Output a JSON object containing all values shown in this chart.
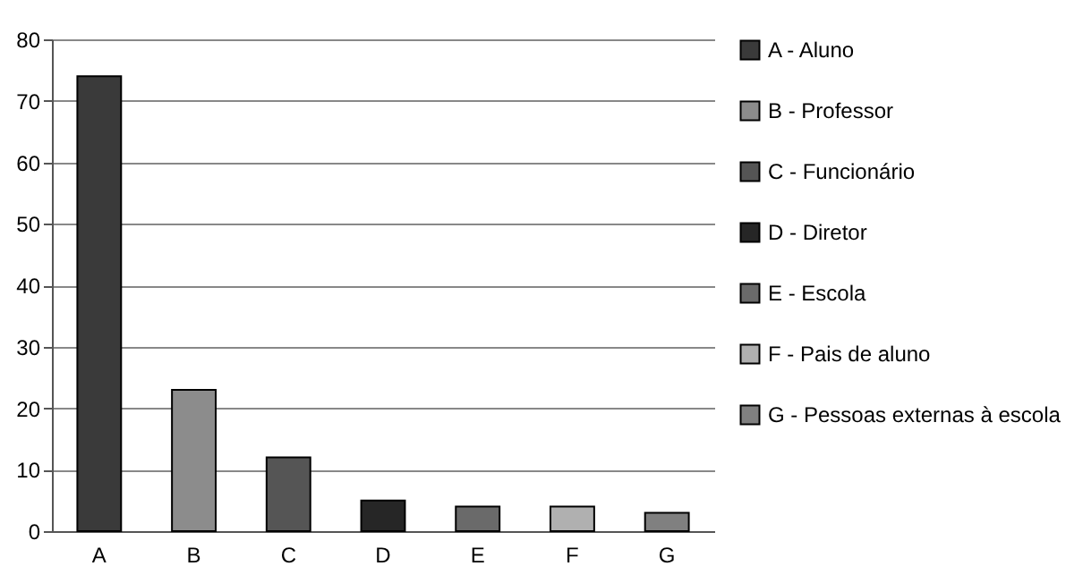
{
  "chart_data": {
    "type": "bar",
    "categories": [
      "A",
      "B",
      "C",
      "D",
      "E",
      "F",
      "G"
    ],
    "series": [
      {
        "name": "A - Aluno",
        "color": "#3a3a3a",
        "values": [
          74,
          null,
          null,
          null,
          null,
          null,
          null
        ]
      },
      {
        "name": "B - Professor",
        "color": "#8c8c8c",
        "values": [
          null,
          23,
          null,
          null,
          null,
          null,
          null
        ]
      },
      {
        "name": "C - Funcionário",
        "color": "#555555",
        "values": [
          null,
          null,
          12,
          null,
          null,
          null,
          null
        ]
      },
      {
        "name": "D - Diretor",
        "color": "#262626",
        "values": [
          null,
          null,
          null,
          5,
          null,
          null,
          null
        ]
      },
      {
        "name": "E - Escola",
        "color": "#6a6a6a",
        "values": [
          null,
          null,
          null,
          null,
          4,
          null,
          null
        ]
      },
      {
        "name": "F - Pais de aluno",
        "color": "#b0b0b0",
        "values": [
          null,
          null,
          null,
          null,
          null,
          4,
          null
        ]
      },
      {
        "name": "G - Pessoas externas à escola",
        "color": "#808080",
        "values": [
          null,
          null,
          null,
          null,
          null,
          null,
          3
        ]
      }
    ],
    "ylim": [
      0,
      80
    ],
    "yticks": [
      0,
      10,
      20,
      30,
      40,
      50,
      60,
      70,
      80
    ],
    "grid": "y",
    "legend": "right"
  }
}
